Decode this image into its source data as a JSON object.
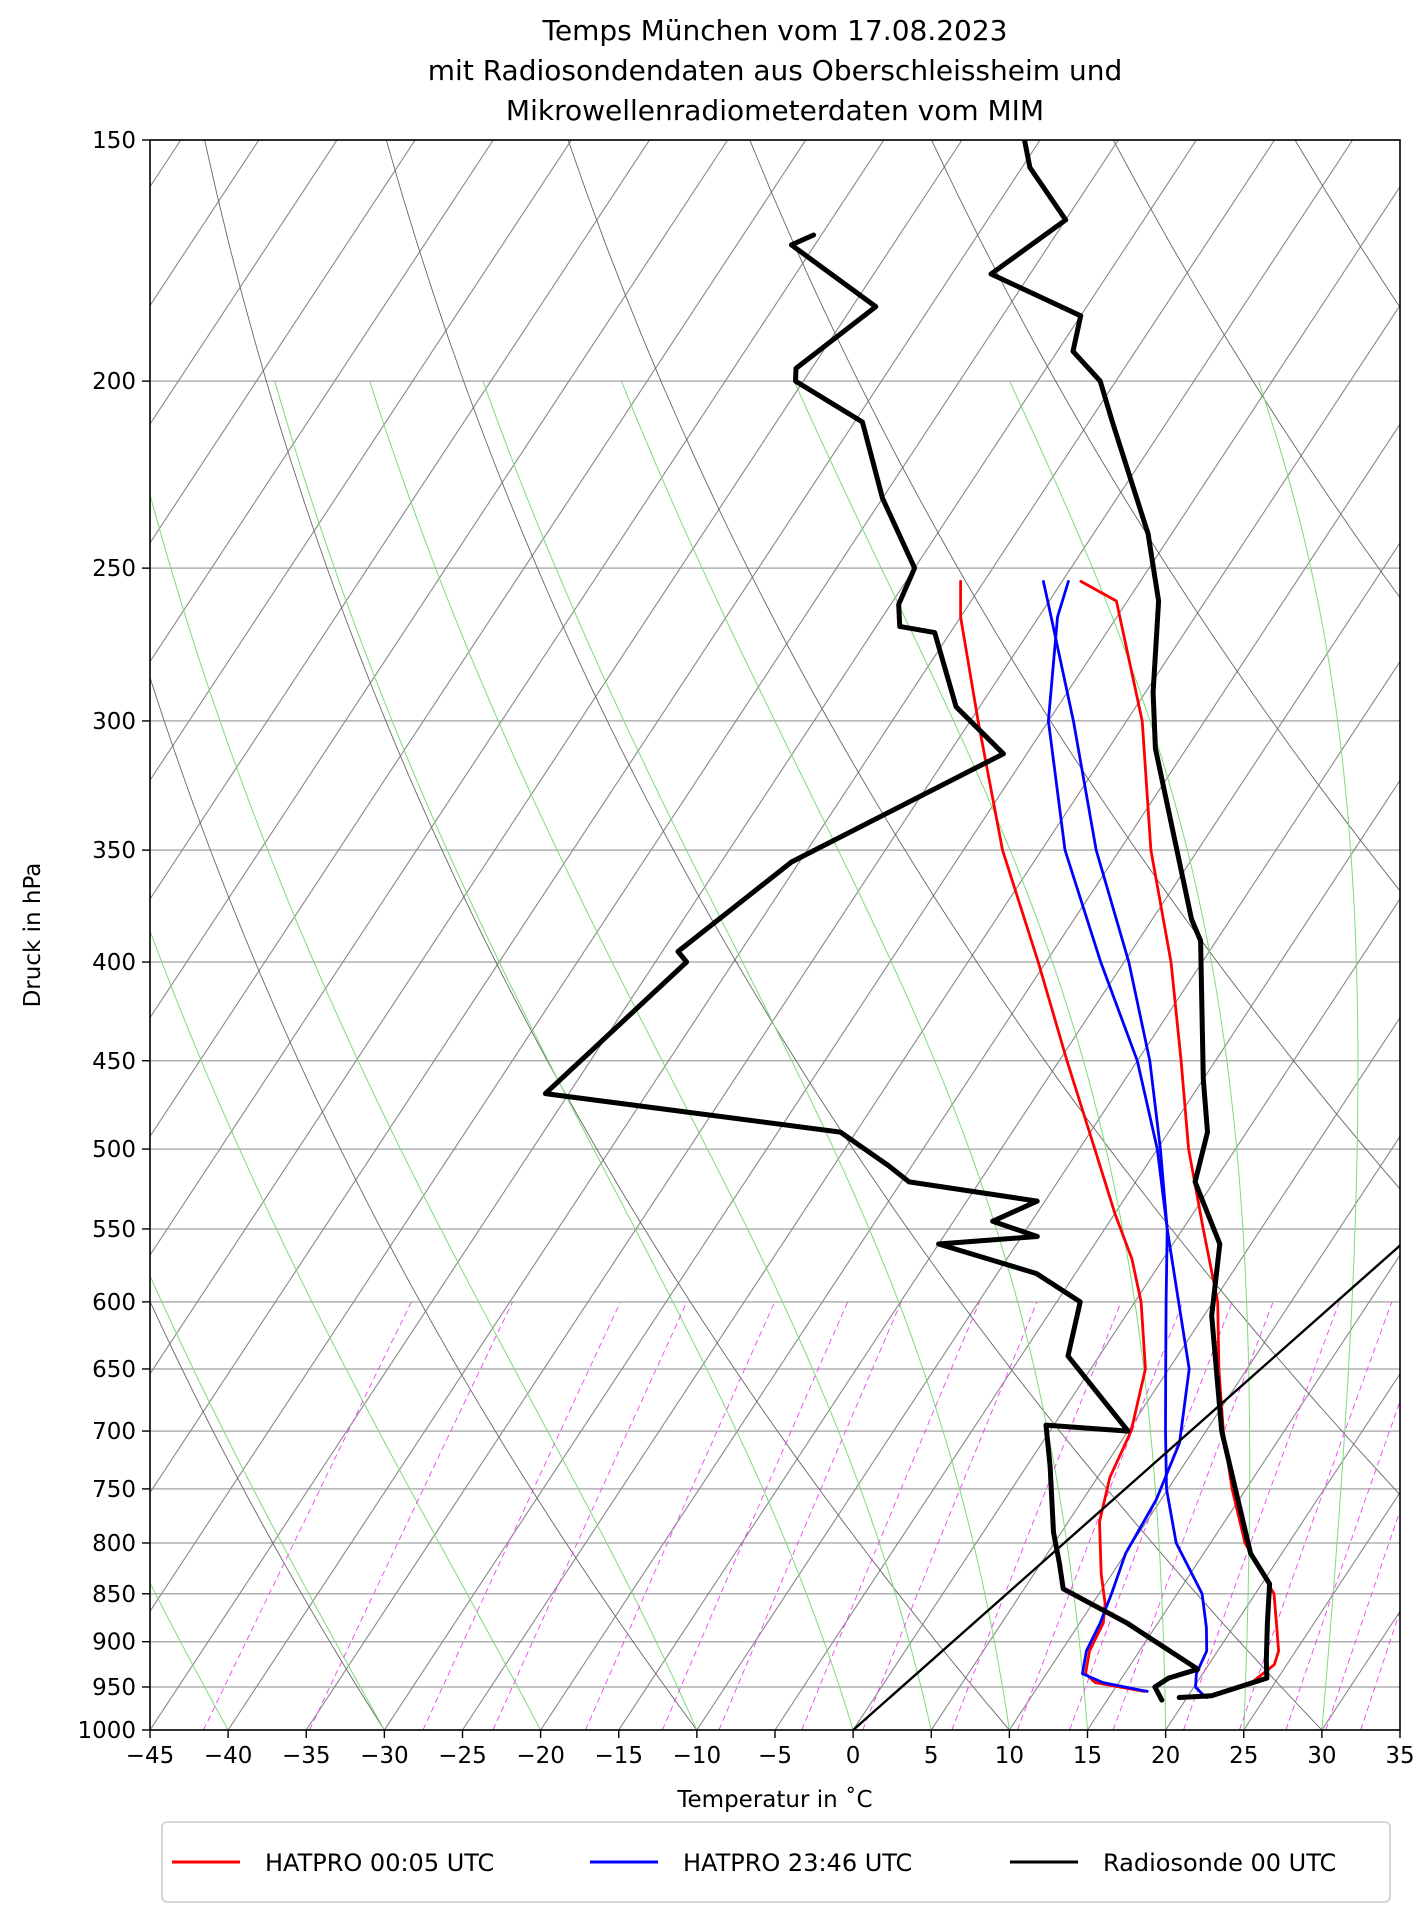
{
  "chart_data": {
    "type": "line",
    "diagram": "skew-T log-p",
    "title": [
      "Temps München vom 17.08.2023",
      "mit Radiosondendaten aus Oberschleissheim und",
      "Mikrowellenradiometerdaten vom MIM"
    ],
    "xlabel": "Temperatur in ˚C",
    "ylabel": "Druck in hPa",
    "xlim": [
      -45,
      35
    ],
    "ylim": [
      1000,
      150
    ],
    "y_scale": "log",
    "x_ticks": [
      "−45",
      "−40",
      "−35",
      "−30",
      "−25",
      "−20",
      "−15",
      "−10",
      "−5",
      "0",
      "5",
      "10",
      "15",
      "20",
      "25",
      "30",
      "35"
    ],
    "y_ticks": [
      1000,
      950,
      900,
      850,
      800,
      750,
      700,
      650,
      600,
      550,
      500,
      450,
      400,
      350,
      300,
      250,
      200,
      150
    ],
    "grid": true,
    "legend_position": "bottom",
    "colors": {
      "hatpro_0005": "#ff0000",
      "hatpro_2346": "#0000ff",
      "radiosonde": "#000000",
      "isotherm": "#888888",
      "dry_adiabat": "#666666",
      "moist_adiabat": "#7bdc7b",
      "mixing_ratio": "#ee44ee"
    },
    "series": [
      {
        "name": "HATPRO 00:05 UTC",
        "color": "#ff0000",
        "profiles": [
          {
            "role": "temperature",
            "points": [
              [
                21.3,
                962
              ],
              [
                23.5,
                945
              ],
              [
                24.2,
                925
              ],
              [
                23.9,
                910
              ],
              [
                22.8,
                885
              ],
              [
                21.2,
                850
              ],
              [
                17.2,
                800
              ],
              [
                14.1,
                750
              ],
              [
                11.1,
                700
              ],
              [
                8.2,
                650
              ],
              [
                5.3,
                600
              ],
              [
                1.3,
                550
              ],
              [
                -3.0,
                500
              ],
              [
                -7.2,
                450
              ],
              [
                -12.0,
                400
              ],
              [
                -18.0,
                350
              ],
              [
                -24.0,
                300
              ],
              [
                -30.7,
                260
              ],
              [
                -33.8,
                254
              ]
            ]
          },
          {
            "role": "dewpoint",
            "points": [
              [
                17.0,
                955
              ],
              [
                13.5,
                945
              ],
              [
                12.5,
                935
              ],
              [
                11.8,
                910
              ],
              [
                11.5,
                880
              ],
              [
                10.8,
                860
              ],
              [
                9.3,
                830
              ],
              [
                7.0,
                780
              ],
              [
                5.8,
                740
              ],
              [
                5.2,
                700
              ],
              [
                3.5,
                650
              ],
              [
                0.4,
                600
              ],
              [
                -2.0,
                570
              ],
              [
                -5.0,
                540
              ],
              [
                -9.0,
                500
              ],
              [
                -14.5,
                450
              ],
              [
                -20.5,
                400
              ],
              [
                -27.5,
                350
              ],
              [
                -34.5,
                300
              ],
              [
                -40.0,
                265
              ],
              [
                -41.5,
                254
              ]
            ]
          }
        ]
      },
      {
        "name": "HATPRO 23:46 UTC",
        "color": "#0000ff",
        "profiles": [
          {
            "role": "temperature",
            "points": [
              [
                21.2,
                962
              ],
              [
                20.1,
                950
              ],
              [
                19.6,
                935
              ],
              [
                19.3,
                910
              ],
              [
                18.3,
                885
              ],
              [
                16.6,
                850
              ],
              [
                12.8,
                800
              ],
              [
                9.9,
                750
              ],
              [
                7.4,
                700
              ],
              [
                4.8,
                650
              ],
              [
                2.0,
                600
              ],
              [
                -1.0,
                550
              ],
              [
                -4.8,
                500
              ],
              [
                -9.2,
                450
              ],
              [
                -14.7,
                400
              ],
              [
                -21.5,
                350
              ],
              [
                -28.4,
                300
              ],
              [
                -35.1,
                260
              ],
              [
                -36.2,
                254
              ]
            ]
          },
          {
            "role": "dewpoint",
            "points": [
              [
                17.2,
                955
              ],
              [
                14.0,
                945
              ],
              [
                12.3,
                935
              ],
              [
                11.6,
                910
              ],
              [
                11.3,
                880
              ],
              [
                10.8,
                850
              ],
              [
                10.0,
                810
              ],
              [
                9.7,
                760
              ],
              [
                8.8,
                710
              ],
              [
                6.3,
                650
              ],
              [
                2.8,
                600
              ],
              [
                -1.0,
                550
              ],
              [
                -5.0,
                500
              ],
              [
                -10.0,
                450
              ],
              [
                -16.5,
                400
              ],
              [
                -23.5,
                350
              ],
              [
                -30.0,
                300
              ],
              [
                -33.8,
                265
              ],
              [
                -34.6,
                254
              ]
            ]
          }
        ]
      },
      {
        "name": "Radiosonde 00 UTC",
        "color": "#000000",
        "profiles": [
          {
            "role": "temperature",
            "points": [
              [
                19.5,
                962
              ],
              [
                21.5,
                960
              ],
              [
                24.3,
                940
              ],
              [
                23.5,
                920
              ],
              [
                22.0,
                880
              ],
              [
                20.5,
                840
              ],
              [
                18.0,
                810
              ],
              [
                11.0,
                700
              ],
              [
                5.5,
                610
              ],
              [
                3.0,
                560
              ],
              [
                -1.2,
                520
              ],
              [
                -2.5,
                490
              ],
              [
                -5.0,
                460
              ],
              [
                -11.0,
                390
              ],
              [
                -12.5,
                380
              ],
              [
                -22.0,
                310
              ],
              [
                -24.5,
                290
              ],
              [
                -28.0,
                260
              ],
              [
                -31.5,
                240
              ],
              [
                -38.5,
                210
              ],
              [
                -41.0,
                200
              ],
              [
                -44.0,
                193
              ],
              [
                -45.0,
                185
              ],
              [
                -52.5,
                176
              ],
              [
                -50.0,
                165
              ],
              [
                -54.5,
                155
              ],
              [
                -56.0,
                150
              ]
            ]
          },
          {
            "role": "dewpoint",
            "points": [
              [
                18.5,
                965
              ],
              [
                17.5,
                950
              ],
              [
                18.0,
                940
              ],
              [
                19.5,
                930
              ],
              [
                13.0,
                880
              ],
              [
                7.5,
                845
              ],
              [
                6.2,
                820
              ],
              [
                4.5,
                790
              ],
              [
                1.5,
                730
              ],
              [
                -0.5,
                695
              ],
              [
                5.0,
                700
              ],
              [
                -2.0,
                640
              ],
              [
                -3.5,
                600
              ],
              [
                -7.5,
                580
              ],
              [
                -15.0,
                560
              ],
              [
                -9.0,
                555
              ],
              [
                -12.5,
                545
              ],
              [
                -10.5,
                532
              ],
              [
                -19.5,
                520
              ],
              [
                -21.5,
                510
              ],
              [
                -26.0,
                490
              ],
              [
                -46.5,
                468
              ],
              [
                -43.0,
                400
              ],
              [
                -44.0,
                395
              ],
              [
                -40.5,
                355
              ],
              [
                -31.5,
                312
              ],
              [
                -36.5,
                295
              ],
              [
                -41.0,
                270
              ],
              [
                -43.5,
                268
              ],
              [
                -44.5,
                261
              ],
              [
                -45.0,
                250
              ],
              [
                -50.0,
                230
              ],
              [
                -54.5,
                210
              ],
              [
                -60.5,
                200
              ],
              [
                -61.0,
                197
              ],
              [
                -58.5,
                183
              ],
              [
                -66.5,
                170
              ],
              [
                -65.5,
                168
              ]
            ]
          }
        ]
      }
    ],
    "reference_line": {
      "color": "#000000",
      "points": [
        [
          0,
          1000
        ],
        [
          35,
          250
        ]
      ]
    }
  },
  "legend": {
    "items": [
      {
        "label": "HATPRO 00:05 UTC",
        "color": "#ff0000"
      },
      {
        "label": "HATPRO 23:46 UTC",
        "color": "#0000ff"
      },
      {
        "label": "Radiosonde 00 UTC",
        "color": "#000000"
      }
    ]
  }
}
